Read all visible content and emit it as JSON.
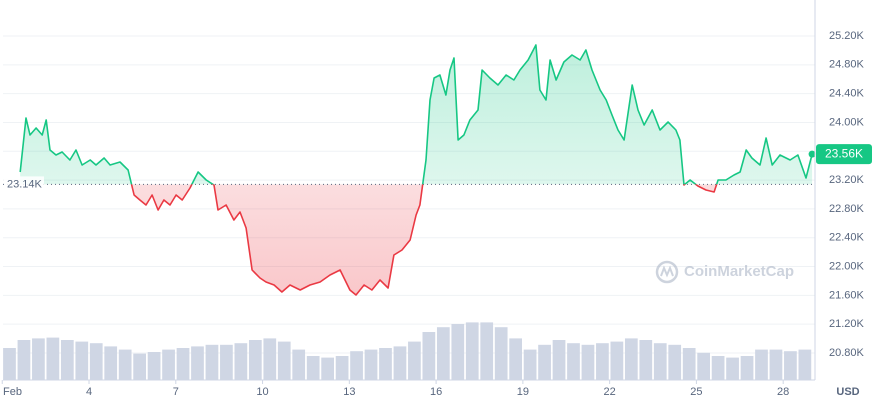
{
  "chart_data": {
    "type": "line",
    "x": [
      1.62,
      1.82,
      1.96,
      2.17,
      2.38,
      2.52,
      2.65,
      2.86,
      3.07,
      3.34,
      3.55,
      3.76,
      4.04,
      4.24,
      4.52,
      4.73,
      5.07,
      5.35,
      5.56,
      5.76,
      5.97,
      6.18,
      6.39,
      6.59,
      6.8,
      7.01,
      7.22,
      7.49,
      7.77,
      8.05,
      8.32,
      8.46,
      8.74,
      9.01,
      9.22,
      9.43,
      9.64,
      9.91,
      10.12,
      10.4,
      10.67,
      10.95,
      11.3,
      11.64,
      11.99,
      12.33,
      12.68,
      13.02,
      13.23,
      13.51,
      13.78,
      14.06,
      14.34,
      14.54,
      14.82,
      15.1,
      15.31,
      15.44,
      15.65,
      15.79,
      15.93,
      16.13,
      16.34,
      16.48,
      16.62,
      16.76,
      16.96,
      17.17,
      17.45,
      17.59,
      17.86,
      18.14,
      18.42,
      18.69,
      18.9,
      19.18,
      19.45,
      19.59,
      19.8,
      19.94,
      20.15,
      20.42,
      20.7,
      20.98,
      21.18,
      21.39,
      21.67,
      21.88,
      22.08,
      22.29,
      22.5,
      22.78,
      22.98,
      23.19,
      23.47,
      23.74,
      24.02,
      24.29,
      24.43,
      24.57,
      24.78,
      25.05,
      25.33,
      25.61,
      25.75,
      26.02,
      26.3,
      26.51,
      26.72,
      26.92,
      27.2,
      27.41,
      27.62,
      27.89,
      28.24,
      28.51,
      28.79,
      29.0
    ],
    "values": [
      23312,
      24062,
      23826,
      23923,
      23826,
      24034,
      23618,
      23548,
      23590,
      23479,
      23618,
      23409,
      23479,
      23409,
      23507,
      23409,
      23451,
      23340,
      22993,
      22924,
      22854,
      22993,
      22785,
      22924,
      22854,
      22993,
      22924,
      23090,
      23312,
      23201,
      23132,
      22785,
      22854,
      22646,
      22757,
      22535,
      21952,
      21841,
      21786,
      21744,
      21647,
      21744,
      21674,
      21744,
      21786,
      21883,
      21952,
      21674,
      21605,
      21744,
      21674,
      21813,
      21702,
      22160,
      22230,
      22368,
      22715,
      22854,
      23479,
      24312,
      24617,
      24659,
      24381,
      24728,
      24895,
      23756,
      23826,
      24034,
      24173,
      24728,
      24617,
      24520,
      24659,
      24589,
      24728,
      24867,
      25075,
      24450,
      24312,
      24867,
      24589,
      24839,
      24936,
      24867,
      25006,
      24728,
      24450,
      24312,
      24103,
      23895,
      23756,
      24520,
      24173,
      23965,
      24173,
      23895,
      24006,
      23895,
      23756,
      23132,
      23201,
      23118,
      23062,
      23035,
      23201,
      23201,
      23271,
      23312,
      23618,
      23507,
      23409,
      23784,
      23409,
      23548,
      23479,
      23548,
      23229,
      23560
    ],
    "up_color": "#16c784",
    "down_color": "#ea3943",
    "baseline": {
      "value": 23140,
      "label": "23.14K"
    },
    "current_price": {
      "value": 23560,
      "label": "23.56K"
    },
    "volume": {
      "x": [
        1.25,
        1.75,
        2.25,
        2.75,
        3.25,
        3.75,
        4.25,
        4.75,
        5.25,
        5.75,
        6.25,
        6.75,
        7.25,
        7.75,
        8.25,
        8.75,
        9.25,
        9.75,
        10.25,
        10.75,
        11.25,
        11.75,
        12.25,
        12.75,
        13.25,
        13.75,
        14.25,
        14.75,
        15.25,
        15.75,
        16.25,
        16.75,
        17.25,
        17.75,
        18.25,
        18.75,
        19.25,
        19.75,
        20.25,
        20.75,
        21.25,
        21.75,
        22.25,
        22.75,
        23.25,
        23.75,
        24.25,
        24.75,
        25.25,
        25.75,
        26.25,
        26.75,
        27.25,
        27.75,
        28.25,
        28.75
      ],
      "values": [
        40,
        50,
        52,
        53,
        50,
        48,
        46,
        42,
        38,
        33,
        35,
        38,
        40,
        42,
        44,
        44,
        46,
        50,
        52,
        48,
        38,
        30,
        28,
        30,
        36,
        38,
        40,
        42,
        48,
        60,
        66,
        70,
        72,
        72,
        66,
        52,
        38,
        44,
        50,
        46,
        44,
        46,
        48,
        52,
        50,
        46,
        44,
        40,
        34,
        30,
        28,
        30,
        38,
        38,
        36,
        38
      ],
      "color": "#cfd6e4"
    },
    "y2lim": [
      0,
      475
    ],
    "xlim": [
      1.026,
      29.1
    ],
    "ylim": [
      20425,
      25700
    ],
    "xticks": [
      {
        "value": 1,
        "label": "Feb"
      },
      4,
      7,
      10,
      13,
      16,
      19,
      22,
      25,
      28
    ],
    "yticks": [
      {
        "value": 20800,
        "label": "20.80K"
      },
      {
        "value": 21200,
        "label": "21.20K"
      },
      {
        "value": 21600,
        "label": "21.60K"
      },
      {
        "value": 22000,
        "label": "22.00K"
      },
      {
        "value": 22400,
        "label": "22.40K"
      },
      {
        "value": 22800,
        "label": "22.80K"
      },
      {
        "value": 23200,
        "label": "23.20K"
      },
      {
        "value": 23600,
        "label": "23.60K"
      },
      {
        "value": 24000,
        "label": "24.00K"
      },
      {
        "value": 24400,
        "label": "24.40K"
      },
      {
        "value": 24800,
        "label": "24.80K"
      },
      {
        "value": 25200,
        "label": "25.20K"
      }
    ],
    "currency": "USD",
    "watermark": "CoinMarketCap",
    "grid": true
  }
}
